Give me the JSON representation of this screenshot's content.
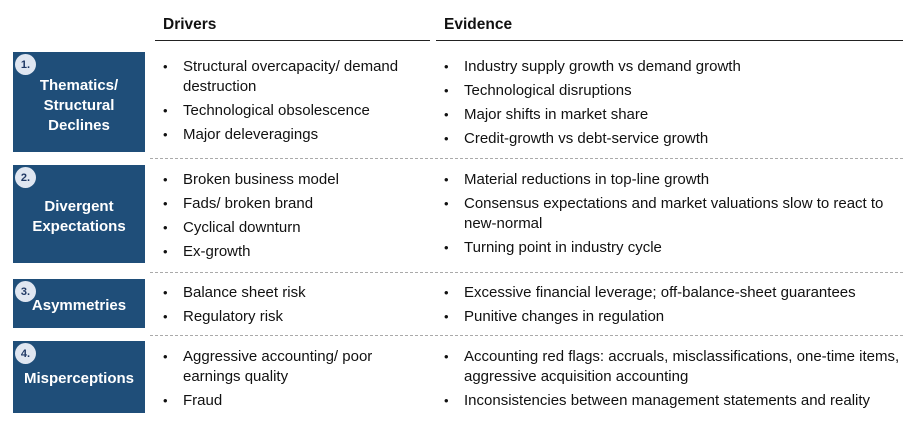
{
  "headers": {
    "drivers": "Drivers",
    "evidence": "Evidence"
  },
  "rows": [
    {
      "num": "1.",
      "title": "Thematics/ Structural Declines",
      "drivers": [
        "Structural overcapacity/ demand destruction",
        "Technological obsolescence",
        "Major deleveragings"
      ],
      "evidence": [
        "Industry supply growth vs demand growth",
        "Technological disruptions",
        "Major shifts in market share",
        "Credit-growth vs debt-service growth"
      ]
    },
    {
      "num": "2.",
      "title": "Divergent Expectations",
      "drivers": [
        "Broken business model",
        "Fads/ broken brand",
        "Cyclical downturn",
        "Ex-growth"
      ],
      "evidence": [
        "Material reductions in top-line growth",
        "Consensus expectations and market valuations slow to react to new-normal",
        "Turning point in industry cycle"
      ]
    },
    {
      "num": "3.",
      "title": "Asymmetries",
      "drivers": [
        "Balance sheet risk",
        "Regulatory risk"
      ],
      "evidence": [
        "Excessive financial leverage; off-balance-sheet guarantees",
        "Punitive changes in regulation"
      ]
    },
    {
      "num": "4.",
      "title": "Misperceptions",
      "drivers": [
        "Aggressive accounting/ poor earnings quality",
        "Fraud"
      ],
      "evidence": [
        "Accounting red flags: accruals, misclassifications, one-time items, aggressive acquisition accounting",
        "Inconsistencies between management statements and reality"
      ]
    }
  ],
  "colors": {
    "category_bg": "#1f4e79",
    "badge_bg": "#dfe6f1",
    "badge_text": "#1f3864"
  }
}
